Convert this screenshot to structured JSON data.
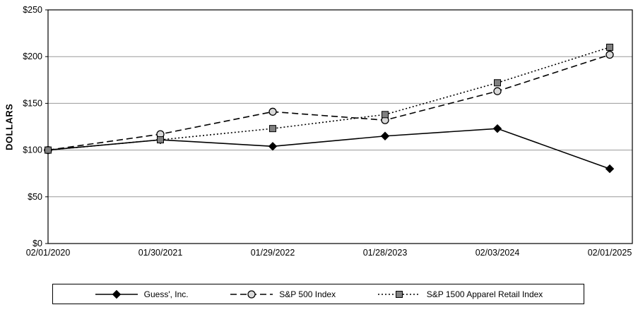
{
  "chart_data": {
    "type": "line",
    "title": "",
    "xlabel": "",
    "ylabel": "DOLLARS",
    "ylim": [
      0,
      250
    ],
    "grid": true,
    "legend_position": "bottom",
    "yticks": [
      {
        "value": 0,
        "label": "$0"
      },
      {
        "value": 50,
        "label": "$50"
      },
      {
        "value": 100,
        "label": "$100"
      },
      {
        "value": 150,
        "label": "$150"
      },
      {
        "value": 200,
        "label": "$200"
      },
      {
        "value": 250,
        "label": "$250"
      }
    ],
    "categories": [
      "02/01/2020",
      "01/30/2021",
      "01/29/2022",
      "01/28/2023",
      "02/03/2024",
      "02/01/2025"
    ],
    "series": [
      {
        "name": "Guess', Inc.",
        "values": [
          100,
          111,
          104,
          115,
          123,
          80
        ],
        "line_style": "solid",
        "marker": "diamond-filled",
        "color": "#000000",
        "marker_fill": "#000000"
      },
      {
        "name": "S&P 500 Index",
        "values": [
          100,
          117,
          141,
          132,
          163,
          202
        ],
        "line_style": "dashed",
        "marker": "circle-open",
        "color": "#000000",
        "marker_fill": "#d9d9d9"
      },
      {
        "name": "S&P 1500 Apparel Retail Index",
        "values": [
          100,
          111,
          123,
          138,
          172,
          210
        ],
        "line_style": "dotted",
        "marker": "square-filled",
        "color": "#000000",
        "marker_fill": "#808080"
      }
    ],
    "colors": {
      "gridline": "#9a9a9a",
      "axis": "#000000",
      "background": "#ffffff"
    }
  }
}
